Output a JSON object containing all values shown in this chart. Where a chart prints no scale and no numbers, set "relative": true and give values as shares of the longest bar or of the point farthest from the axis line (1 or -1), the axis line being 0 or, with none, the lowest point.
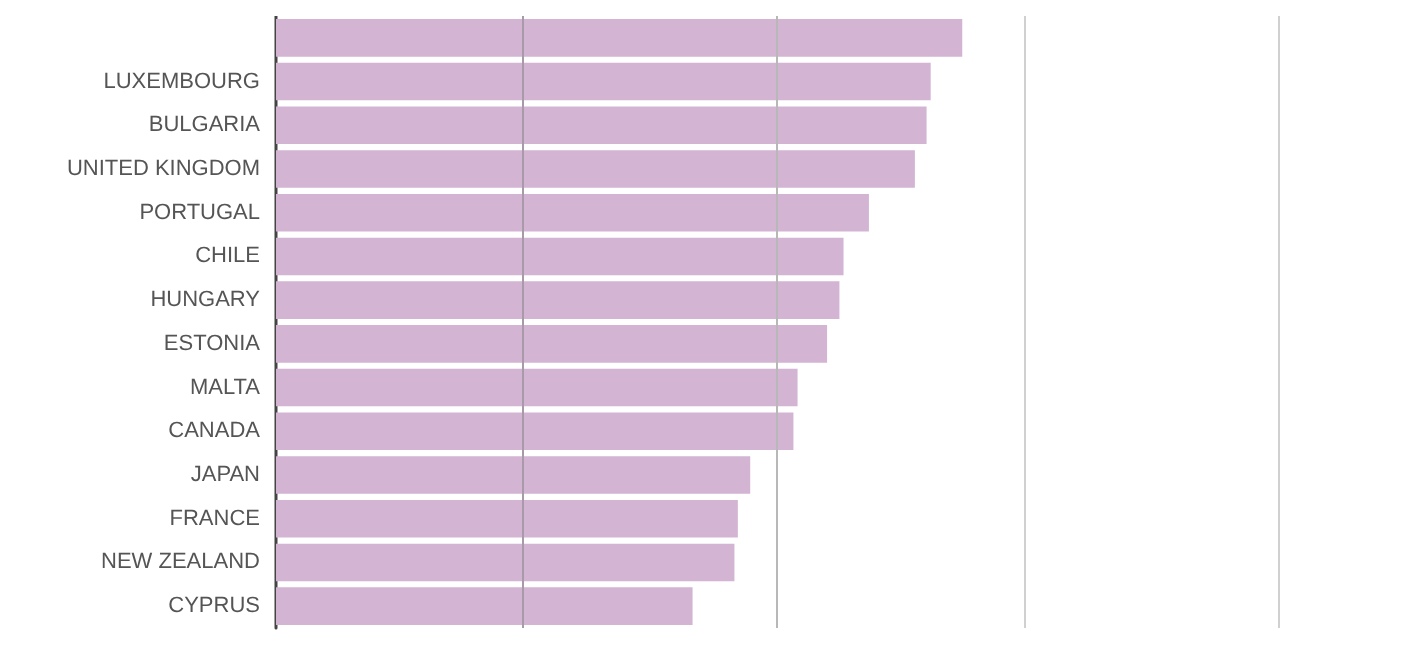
{
  "chart_data": {
    "type": "bar",
    "orientation": "horizontal",
    "relative": true,
    "categories": [
      null,
      "LUXEMBOURG",
      "BULGARIA",
      "UNITED KINGDOM",
      "PORTUGAL",
      "CHILE",
      "HUNGARY",
      "ESTONIA",
      "MALTA",
      "CANADA",
      "JAPAN",
      "FRANCE",
      "NEW ZEALAND",
      "CYPRUS"
    ],
    "values": [
      1,
      0.954,
      0.948,
      0.931,
      0.864,
      0.827,
      0.821,
      0.803,
      0.76,
      0.754,
      0.691,
      0.673,
      0.668,
      0.607
    ],
    "color": "#d3b4d3",
    "ref_lines": [
      {
        "axis": "x",
        "value": 0.364,
        "color": "#a89aa8"
      },
      {
        "axis": "x",
        "value": 0.728,
        "color": "#b8b8b8"
      },
      {
        "axis": "x",
        "value": 1.092,
        "color": "#d0d0d0"
      },
      {
        "axis": "x",
        "value": 1.46,
        "color": "#d0d0d0"
      }
    ]
  }
}
